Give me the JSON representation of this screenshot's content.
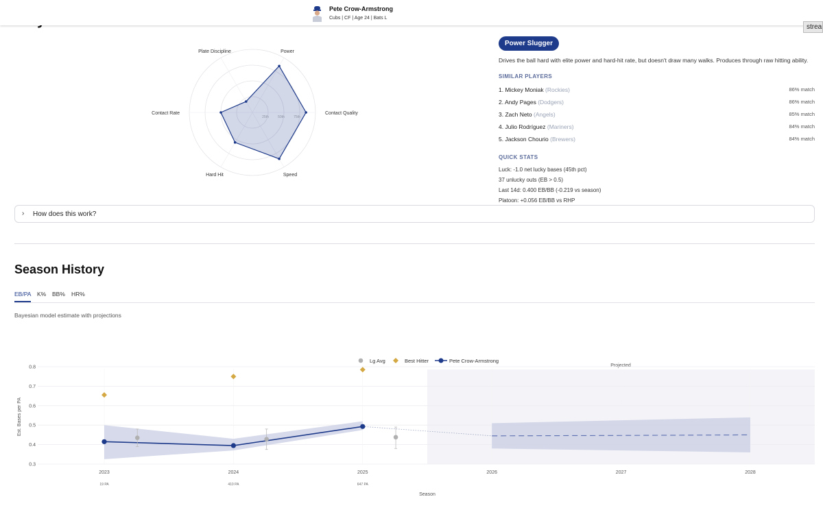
{
  "header": {
    "player_name": "Pete Crow-Armstrong",
    "player_sub": "Cubs | CF | Age 24 | Bats L",
    "stream_button": "stream",
    "hidden_title": "Player Profile"
  },
  "radar": {
    "axes": [
      "Power",
      "Contact Quality",
      "Speed",
      "Hard Hit",
      "Contact Rate",
      "Plate Discipline"
    ],
    "values": [
      0.85,
      0.85,
      0.85,
      0.55,
      0.5,
      0.2
    ],
    "rings": [
      "25th",
      "50th",
      "75th"
    ]
  },
  "archetype": {
    "badge": "Power Slugger",
    "description": "Drives the ball hard with elite power and hard-hit rate, but doesn't draw many walks. Produces through raw hitting ability."
  },
  "similar": {
    "label": "SIMILAR PLAYERS",
    "players": [
      {
        "rank": "1.",
        "name": "Mickey Moniak",
        "team": "(Rockies)",
        "match": "86% match"
      },
      {
        "rank": "2.",
        "name": "Andy Pages",
        "team": "(Dodgers)",
        "match": "86% match"
      },
      {
        "rank": "3.",
        "name": "Zach Neto",
        "team": "(Angels)",
        "match": "85% match"
      },
      {
        "rank": "4.",
        "name": "Julio Rodríguez",
        "team": "(Mariners)",
        "match": "84% match"
      },
      {
        "rank": "5.",
        "name": "Jackson Chourio",
        "team": "(Brewers)",
        "match": "84% match"
      }
    ]
  },
  "quick_stats": {
    "label": "QUICK STATS",
    "lines": [
      "Luck: -1.0 net lucky bases (45th pct)",
      "37 unlucky outs (EB > 0.5)",
      "Last 14d: 0.400 EB/BB (-0.219 vs season)",
      "Platoon: +0.056 EB/BB vs RHP"
    ]
  },
  "expander": {
    "label": "How does this work?"
  },
  "season_history": {
    "title": "Season History",
    "tabs": [
      "EB/PA",
      "K%",
      "BB%",
      "HR%"
    ],
    "active_tab": "EB/PA",
    "subtitle": "Bayesian model estimate with projections"
  },
  "colors": {
    "navy": "#1e3a8a",
    "gold": "#d4a843",
    "gray": "#b0b0b0",
    "band": "#c8cde3"
  },
  "chart_data": {
    "type": "line",
    "xlabel": "Season",
    "ylabel": "Est. Bases per PA",
    "ylim": [
      0.3,
      0.8
    ],
    "yticks": [
      "0.3",
      "0.4",
      "0.5",
      "0.6",
      "0.7",
      "0.8"
    ],
    "x": [
      2023,
      2024,
      2025,
      2026,
      2027,
      2028
    ],
    "pa_labels": {
      "2023": "19 PA",
      "2024": "410 PA",
      "2025": "647 PA"
    },
    "projected_label": "Projected",
    "legend": [
      "Lg Avg",
      "Best Hitter",
      "Pete Crow-Armstrong"
    ],
    "series": [
      {
        "name": "Pete Crow-Armstrong",
        "x": [
          2023,
          2024,
          2025
        ],
        "values": [
          0.415,
          0.395,
          0.493
        ],
        "band_low": [
          0.325,
          0.37,
          0.475
        ],
        "band_high": [
          0.5,
          0.43,
          0.52
        ]
      },
      {
        "name": "Best Hitter",
        "x": [
          2023,
          2024,
          2025
        ],
        "values": [
          0.655,
          0.75,
          0.785
        ]
      },
      {
        "name": "Lg Avg",
        "x": [
          2023.15,
          2024.15,
          2025.15
        ],
        "values": [
          0.435,
          0.428,
          0.438
        ],
        "err_low": [
          0.39,
          0.375,
          0.38
        ],
        "err_high": [
          0.48,
          0.48,
          0.49
        ]
      },
      {
        "name": "Projection",
        "x": [
          2026,
          2027,
          2028
        ],
        "values": [
          0.445,
          0.447,
          0.45
        ],
        "band_low": [
          0.38,
          0.37,
          0.36
        ],
        "band_high": [
          0.51,
          0.525,
          0.54
        ]
      }
    ]
  }
}
